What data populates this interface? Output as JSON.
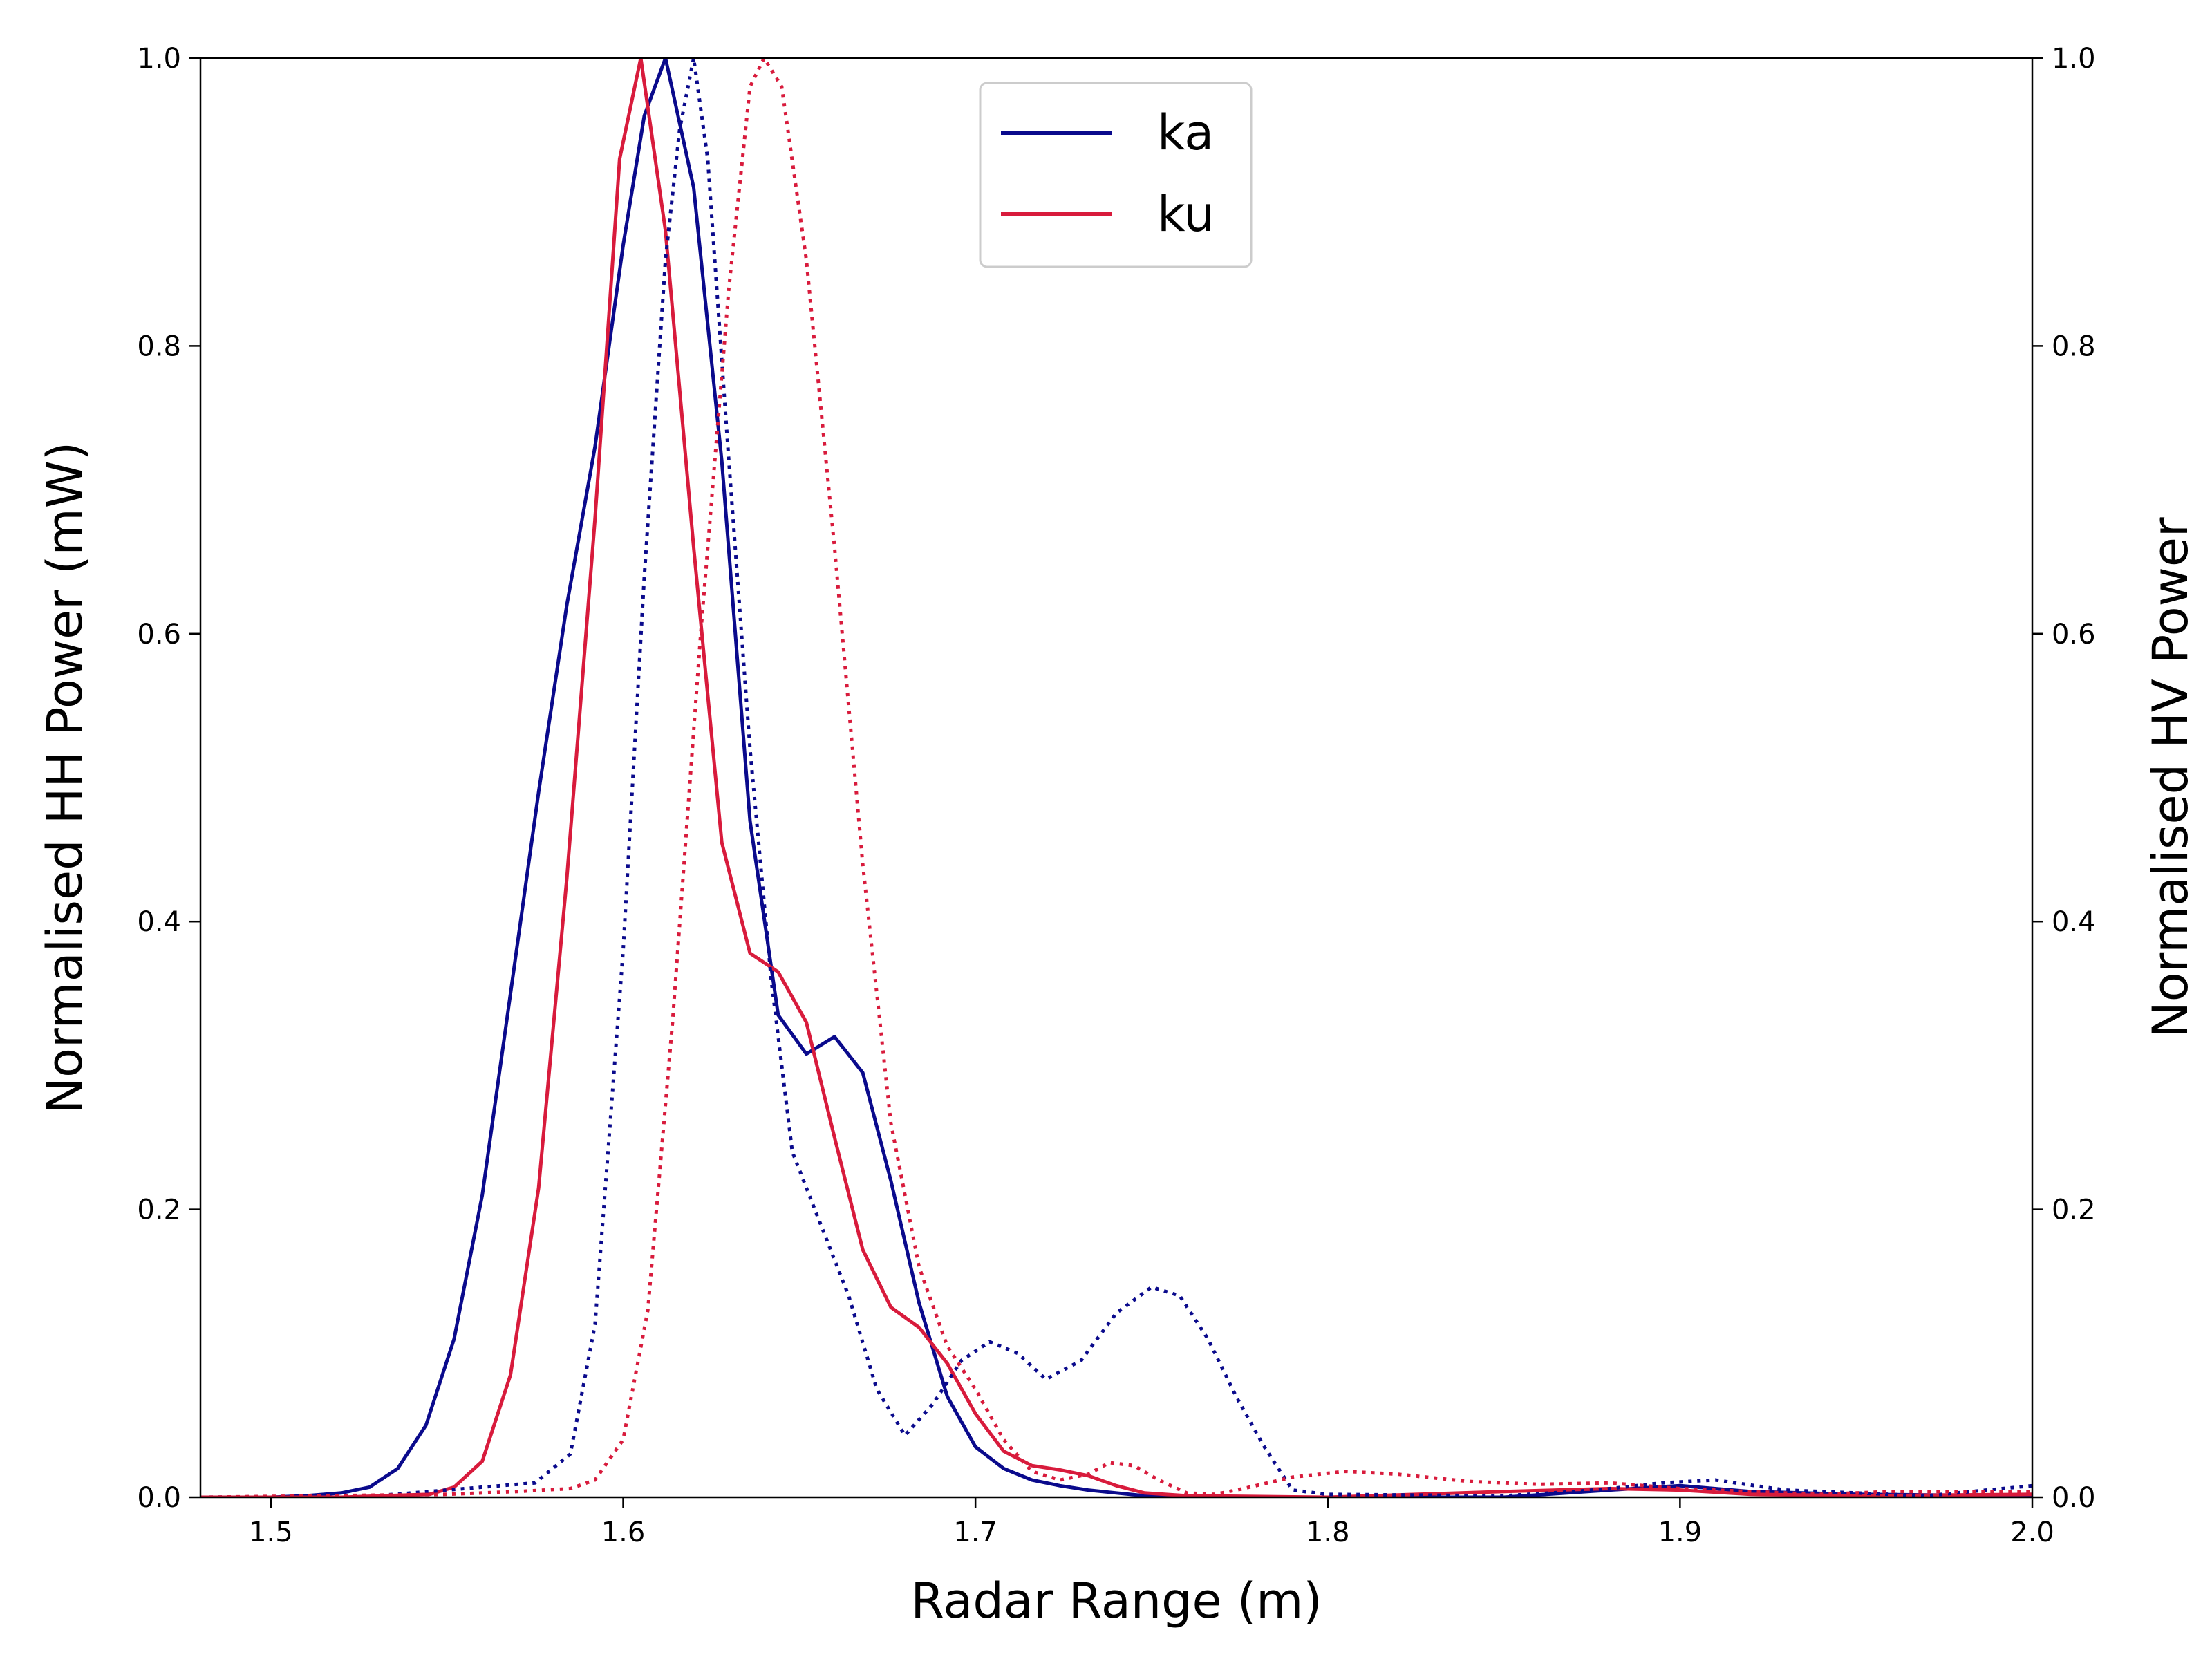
{
  "chart_data": {
    "type": "line",
    "xlabel": "Radar Range (m)",
    "ylabel": "Normalised HH Power (mW)",
    "ylabel_right": "Normalised HV Power",
    "xlim": [
      1.48,
      2.0
    ],
    "ylim": [
      0.0,
      1.0
    ],
    "ylim_right": [
      0.0,
      1.0
    ],
    "xticks": [
      "1.5",
      "1.6",
      "1.7",
      "1.8",
      "1.9",
      "2.0"
    ],
    "yticks": [
      "0.0",
      "0.2",
      "0.4",
      "0.6",
      "0.8",
      "1.0"
    ],
    "yticks_right": [
      "0.0",
      "0.2",
      "0.4",
      "0.6",
      "0.8",
      "1.0"
    ],
    "grid": false,
    "legend_position": "top-center",
    "legend": [
      {
        "label": "ka",
        "color": "#0a0a8c"
      },
      {
        "label": "ku",
        "color": "#d81b3c"
      }
    ],
    "series": [
      {
        "name": "ka",
        "axis": "left",
        "style": "solid",
        "color": "#0a0a8c",
        "x": [
          1.48,
          1.5,
          1.51,
          1.52,
          1.528,
          1.536,
          1.544,
          1.552,
          1.56,
          1.568,
          1.576,
          1.584,
          1.592,
          1.6,
          1.606,
          1.612,
          1.62,
          1.628,
          1.636,
          1.644,
          1.652,
          1.66,
          1.668,
          1.676,
          1.684,
          1.692,
          1.7,
          1.708,
          1.716,
          1.724,
          1.732,
          1.74,
          1.748,
          1.76,
          1.8,
          1.85,
          1.88,
          1.9,
          1.92,
          1.95,
          2.0
        ],
        "y": [
          0.0,
          0.0,
          0.001,
          0.003,
          0.007,
          0.02,
          0.05,
          0.11,
          0.21,
          0.35,
          0.49,
          0.62,
          0.73,
          0.87,
          0.96,
          1.0,
          0.91,
          0.72,
          0.47,
          0.335,
          0.308,
          0.32,
          0.295,
          0.22,
          0.135,
          0.07,
          0.035,
          0.02,
          0.012,
          0.008,
          0.005,
          0.003,
          0.001,
          0.0,
          0.0,
          0.0,
          0.005,
          0.008,
          0.004,
          0.002,
          0.001
        ]
      },
      {
        "name": "ku",
        "axis": "left",
        "style": "solid",
        "color": "#d81b3c",
        "x": [
          1.48,
          1.52,
          1.545,
          1.552,
          1.56,
          1.568,
          1.576,
          1.584,
          1.592,
          1.599,
          1.605,
          1.612,
          1.62,
          1.628,
          1.636,
          1.644,
          1.652,
          1.66,
          1.668,
          1.676,
          1.684,
          1.692,
          1.7,
          1.708,
          1.716,
          1.724,
          1.732,
          1.74,
          1.748,
          1.76,
          1.8,
          1.85,
          1.88,
          1.9,
          1.92,
          1.95,
          2.0
        ],
        "y": [
          0.0,
          0.0,
          0.002,
          0.007,
          0.025,
          0.085,
          0.215,
          0.43,
          0.68,
          0.93,
          1.0,
          0.88,
          0.66,
          0.455,
          0.378,
          0.365,
          0.33,
          0.25,
          0.172,
          0.132,
          0.118,
          0.093,
          0.058,
          0.032,
          0.022,
          0.019,
          0.015,
          0.008,
          0.003,
          0.001,
          0.0,
          0.004,
          0.006,
          0.005,
          0.002,
          0.001,
          0.002
        ]
      },
      {
        "name": "ka",
        "axis": "right",
        "style": "dotted",
        "color": "#0a0a8c",
        "x": [
          1.48,
          1.53,
          1.545,
          1.56,
          1.575,
          1.585,
          1.592,
          1.6,
          1.606,
          1.612,
          1.616,
          1.62,
          1.624,
          1.63,
          1.636,
          1.642,
          1.648,
          1.656,
          1.664,
          1.672,
          1.68,
          1.688,
          1.696,
          1.704,
          1.712,
          1.72,
          1.73,
          1.74,
          1.75,
          1.758,
          1.766,
          1.774,
          1.782,
          1.79,
          1.8,
          1.85,
          1.87,
          1.88,
          1.895,
          1.91,
          1.93,
          1.97,
          2.0
        ],
        "y": [
          0.0,
          0.001,
          0.004,
          0.007,
          0.01,
          0.03,
          0.12,
          0.38,
          0.64,
          0.86,
          0.95,
          1.0,
          0.93,
          0.72,
          0.52,
          0.36,
          0.24,
          0.19,
          0.14,
          0.075,
          0.043,
          0.065,
          0.095,
          0.108,
          0.1,
          0.082,
          0.095,
          0.128,
          0.146,
          0.14,
          0.11,
          0.07,
          0.035,
          0.005,
          0.002,
          0.001,
          0.004,
          0.006,
          0.01,
          0.012,
          0.005,
          0.001,
          0.008
        ]
      },
      {
        "name": "ku",
        "axis": "right",
        "style": "dotted",
        "color": "#d81b3c",
        "x": [
          1.48,
          1.55,
          1.57,
          1.585,
          1.592,
          1.6,
          1.607,
          1.614,
          1.622,
          1.63,
          1.636,
          1.64,
          1.645,
          1.652,
          1.66,
          1.668,
          1.676,
          1.684,
          1.692,
          1.7,
          1.708,
          1.716,
          1.724,
          1.732,
          1.738,
          1.745,
          1.752,
          1.76,
          1.768,
          1.776,
          1.79,
          1.805,
          1.82,
          1.84,
          1.86,
          1.88,
          1.9,
          1.92,
          1.94,
          1.96,
          2.0
        ],
        "y": [
          0.0,
          0.002,
          0.004,
          0.006,
          0.012,
          0.04,
          0.13,
          0.33,
          0.6,
          0.84,
          0.98,
          1.0,
          0.98,
          0.86,
          0.66,
          0.44,
          0.26,
          0.16,
          0.105,
          0.075,
          0.04,
          0.018,
          0.012,
          0.016,
          0.024,
          0.022,
          0.012,
          0.003,
          0.002,
          0.006,
          0.014,
          0.018,
          0.016,
          0.011,
          0.009,
          0.01,
          0.006,
          0.004,
          0.002,
          0.004,
          0.004
        ]
      }
    ]
  }
}
